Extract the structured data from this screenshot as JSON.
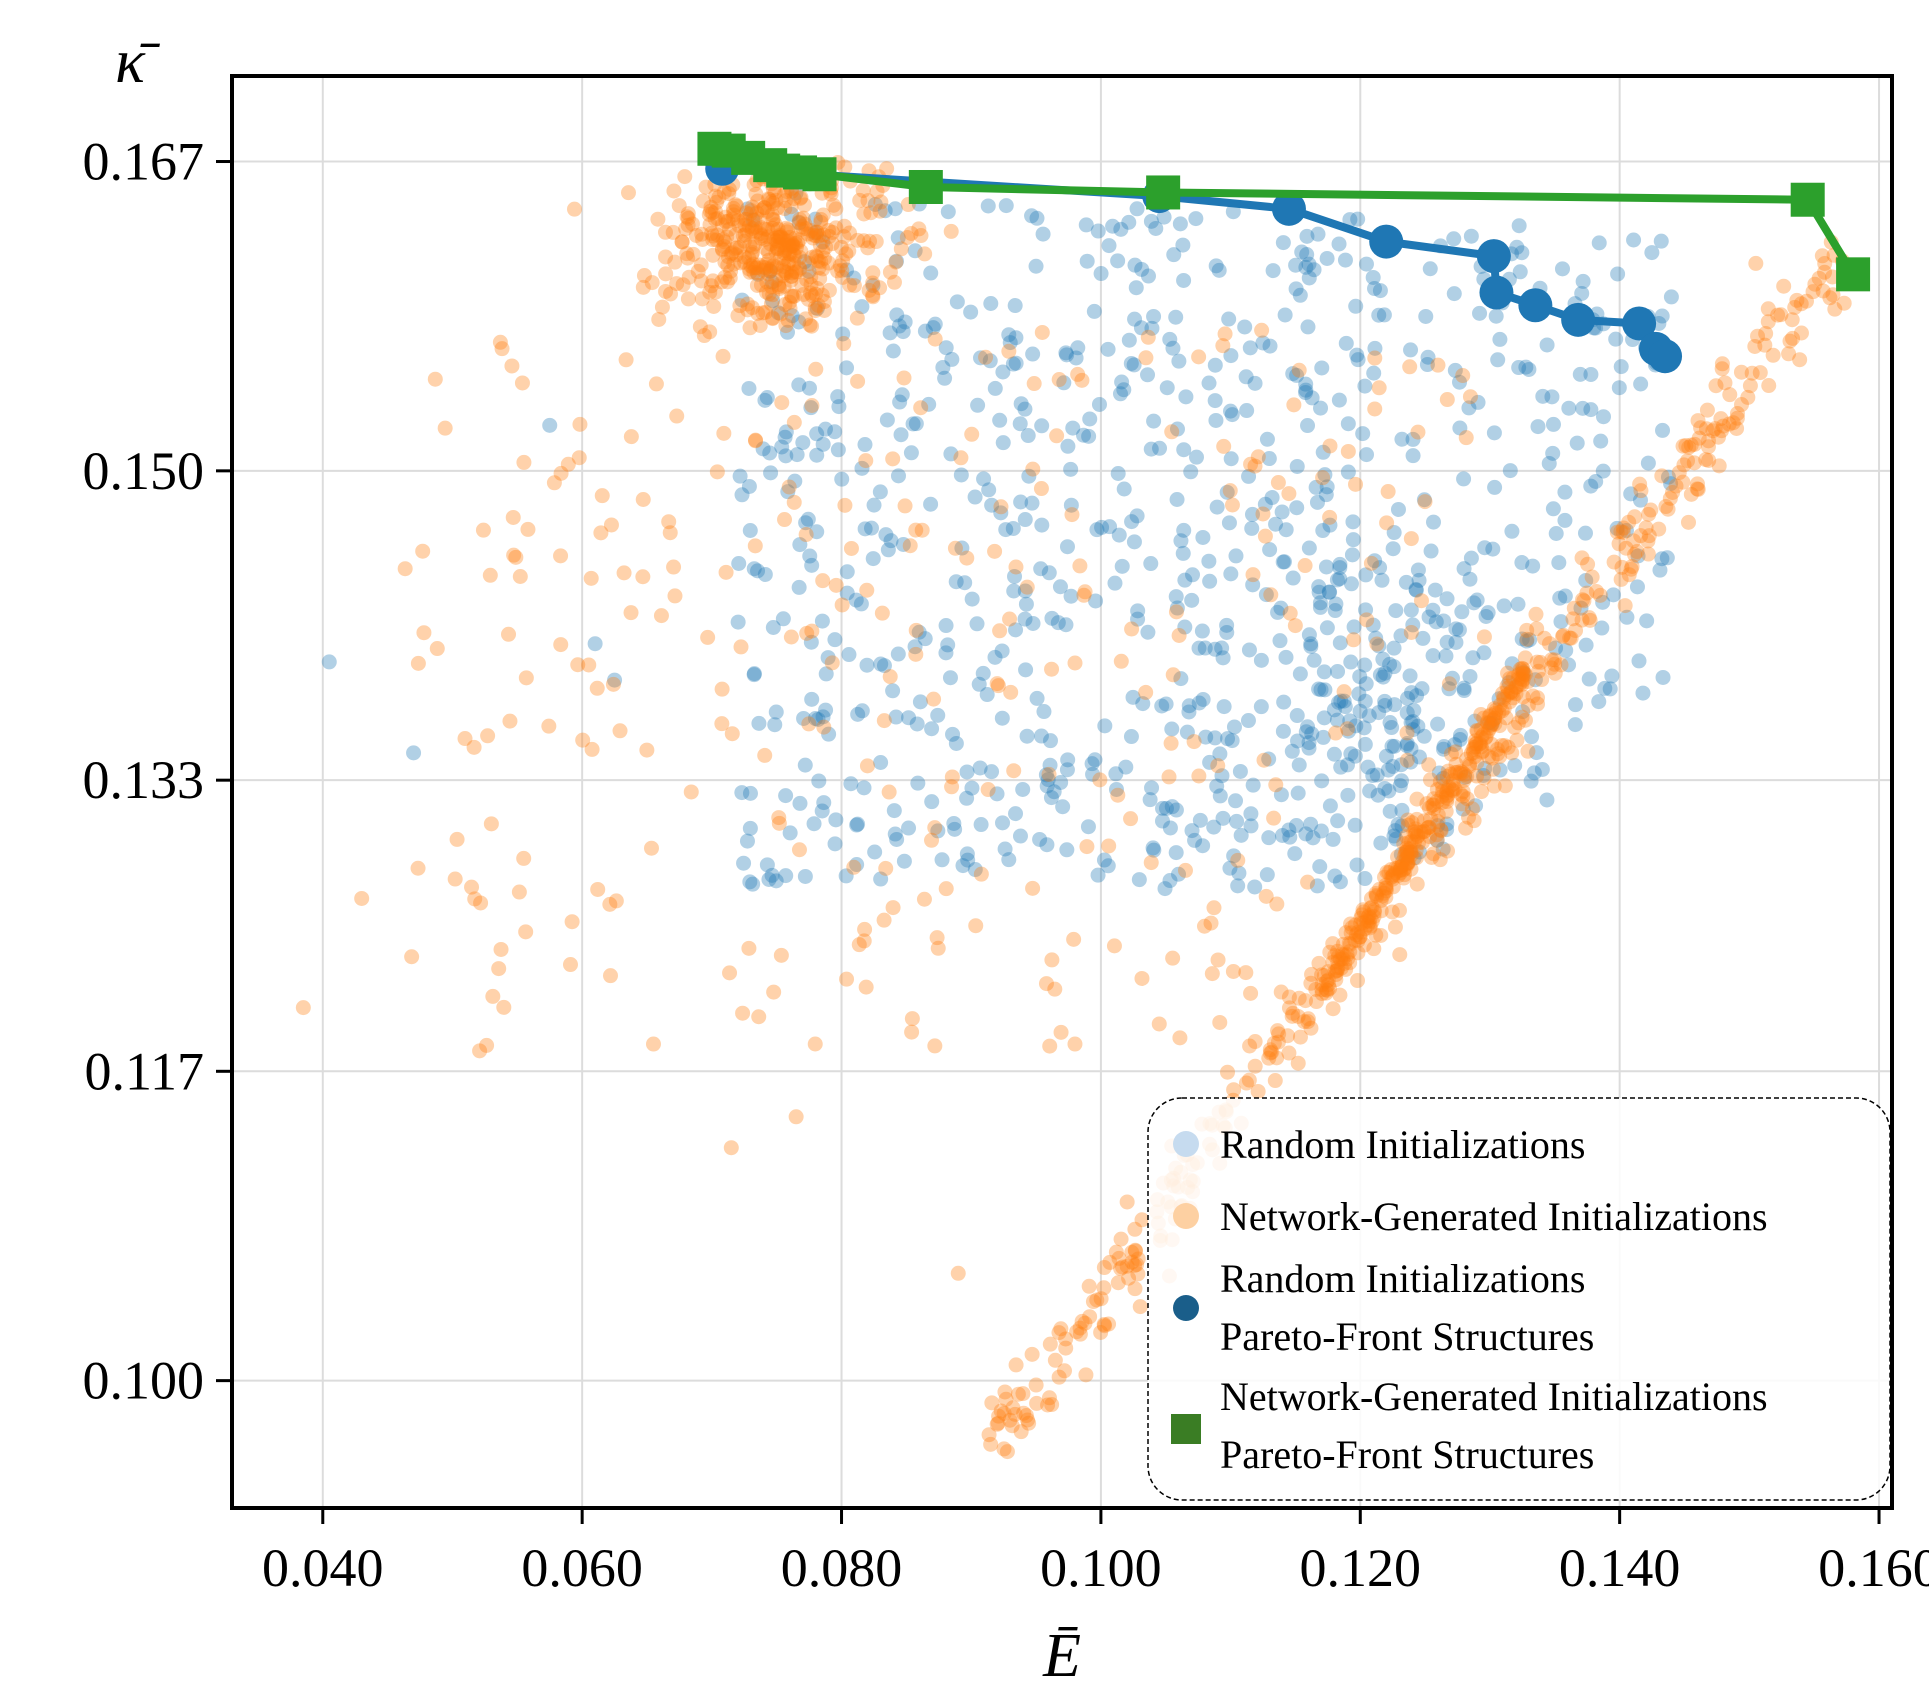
{
  "chart_data": {
    "type": "scatter",
    "title": "",
    "xlabel": "Ē",
    "ylabel": "κ̄",
    "xlim": [
      0.033,
      0.161
    ],
    "ylim": [
      0.093,
      0.1717
    ],
    "x_ticks": [
      0.04,
      0.06,
      0.08,
      0.1,
      0.12,
      0.14,
      0.16
    ],
    "x_tick_labels": [
      "0.040",
      "0.060",
      "0.080",
      "0.100",
      "0.120",
      "0.140",
      "0.160"
    ],
    "y_ticks": [
      0.1,
      0.117,
      0.133,
      0.15,
      0.167
    ],
    "y_tick_labels": [
      "0.100",
      "0.117",
      "0.133",
      "0.150",
      "0.167"
    ],
    "grid": true,
    "legend_position": "bottom-right",
    "colors": {
      "random": "#1f77b4",
      "network": "#ff7f0e",
      "random_legend_light": "#c6dbef",
      "network_legend_light": "#fdd0a2",
      "random_pareto_legend": "#1a5e8a",
      "network_pareto": "#2ca02c",
      "network_pareto_legend": "#3a7d24"
    },
    "series": [
      {
        "name": "Random Initializations",
        "kind": "scatter-cloud",
        "approx_count": 900,
        "x_range": [
          0.04,
          0.144
        ],
        "y_range": [
          0.127,
          0.165
        ],
        "outliers": [
          [
            0.0405,
            0.1395
          ],
          [
            0.047,
            0.1345
          ],
          [
            0.0575,
            0.1525
          ],
          [
            0.061,
            0.1405
          ],
          [
            0.0625,
            0.1385
          ],
          [
            0.0795,
            0.1295
          ]
        ]
      },
      {
        "name": "Network-Generated Initializations",
        "kind": "scatter-cloud",
        "approx_count": 1300,
        "x_range": [
          0.0385,
          0.157
        ],
        "y_range": [
          0.0965,
          0.167
        ],
        "outliers": [
          [
            0.0385,
            0.1205
          ],
          [
            0.043,
            0.1265
          ],
          [
            0.0655,
            0.1185
          ],
          [
            0.0765,
            0.1145
          ],
          [
            0.0715,
            0.1128
          ],
          [
            0.0915,
            0.0965
          ],
          [
            0.092,
            0.0976
          ],
          [
            0.089,
            0.1059
          ],
          [
            0.098,
            0.1185
          ],
          [
            0.1505,
            0.1614
          ]
        ]
      },
      {
        "name": "Random Initializations Pareto-Front Structures",
        "kind": "pareto-line",
        "marker": "circle",
        "x": [
          0.0708,
          0.1045,
          0.1145,
          0.122,
          0.1303,
          0.1305,
          0.1335,
          0.1368,
          0.1415,
          0.1428,
          0.1435
        ],
        "y": [
          0.1666,
          0.1651,
          0.1644,
          0.1626,
          0.1618,
          0.1598,
          0.1591,
          0.1583,
          0.1581,
          0.1567,
          0.1563
        ]
      },
      {
        "name": "Network-Generated Initializations Pareto-Front Structures",
        "kind": "pareto-line",
        "marker": "square",
        "x": [
          0.0702,
          0.0713,
          0.0728,
          0.0745,
          0.0755,
          0.0768,
          0.0783,
          0.0865,
          0.1048,
          0.1545,
          0.158
        ],
        "y": [
          0.1677,
          0.1676,
          0.1672,
          0.1668,
          0.1665,
          0.1664,
          0.1663,
          0.1656,
          0.1653,
          0.1649,
          0.1608
        ]
      }
    ],
    "legend": {
      "items": [
        {
          "lines": [
            "Random Initializations"
          ]
        },
        {
          "lines": [
            "Network-Generated Initializations"
          ]
        },
        {
          "lines": [
            "Random Initializations",
            "Pareto-Front Structures"
          ]
        },
        {
          "lines": [
            "Network-Generated Initializations",
            "Pareto-Front Structures"
          ]
        }
      ]
    }
  }
}
